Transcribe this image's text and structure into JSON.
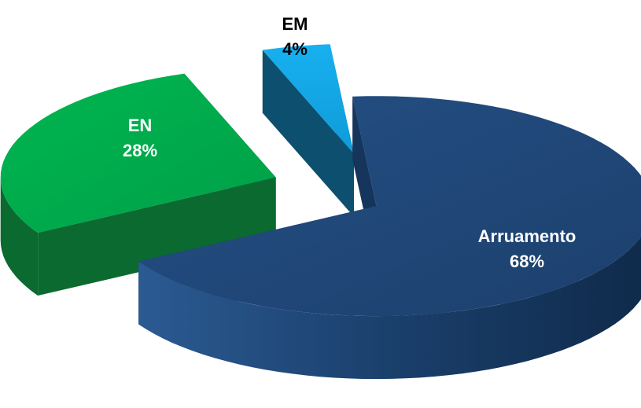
{
  "chart_data": {
    "type": "pie",
    "style": "3d-exploded",
    "slices": [
      {
        "label": "Arruamento",
        "value": 68,
        "value_label": "68%",
        "color": "#1f4778",
        "side_color": "#15355c",
        "label_color": "#ffffff"
      },
      {
        "label": "EN",
        "value": 28,
        "value_label": "28%",
        "color": "#00ad4c",
        "side_color": "#0a6a30",
        "label_color": "#ffffff"
      },
      {
        "label": "EM",
        "value": 4,
        "value_label": "4%",
        "color": "#13a7e8",
        "side_color": "#0d4f6e",
        "label_color": "#000000"
      }
    ]
  }
}
